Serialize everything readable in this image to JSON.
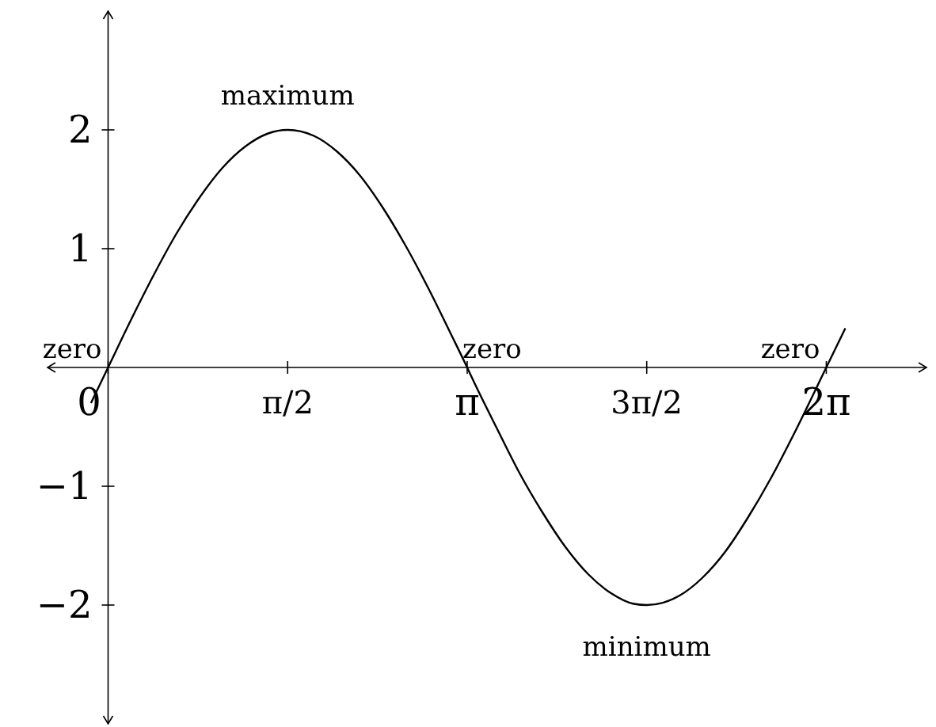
{
  "chart_data": {
    "type": "line",
    "xlim": [
      -0.53,
      7.16
    ],
    "ylim": [
      -3,
      3
    ],
    "xticks": [
      {
        "value": 0,
        "label": "0"
      },
      {
        "value": 1.5708,
        "label": "π/2"
      },
      {
        "value": 3.1416,
        "label": "π"
      },
      {
        "value": 4.7124,
        "label": "3π/2"
      },
      {
        "value": 6.2832,
        "label": "2π"
      }
    ],
    "yticks": [
      {
        "value": -2,
        "label": "−2"
      },
      {
        "value": -1,
        "label": "−1"
      },
      {
        "value": 1,
        "label": "1"
      },
      {
        "value": 2,
        "label": "2"
      }
    ],
    "series": [
      {
        "color": "#000000",
        "x": [
          -0.15,
          0,
          0.2,
          0.4,
          0.6,
          0.8,
          1.0,
          1.2,
          1.4,
          1.5708,
          1.8,
          2.0,
          2.2,
          2.4,
          2.6,
          2.8,
          3.0,
          3.1416,
          3.2,
          3.4,
          3.6,
          3.8,
          4.0,
          4.2,
          4.4,
          4.6,
          4.7124,
          5.0,
          5.2,
          5.4,
          5.6,
          5.8,
          6.0,
          6.2832,
          6.45
        ],
        "values": [
          -0.3,
          0,
          0.4,
          0.78,
          1.13,
          1.43,
          1.68,
          1.86,
          1.97,
          2,
          1.95,
          1.82,
          1.62,
          1.35,
          1.03,
          0.67,
          0.28,
          0,
          -0.12,
          -0.51,
          -0.89,
          -1.22,
          -1.51,
          -1.74,
          -1.9,
          -1.99,
          -2,
          -1.92,
          -1.77,
          -1.55,
          -1.26,
          -0.93,
          -0.56,
          0,
          0.33
        ]
      }
    ],
    "annotations": [
      {
        "text": "maximum",
        "x": 1.5708,
        "y": 2
      },
      {
        "text": "minimum",
        "x": 4.7124,
        "y": -2
      },
      {
        "text": "zero",
        "x": 0,
        "y": 0
      },
      {
        "text": "zero",
        "x": 3.1416,
        "y": 0
      },
      {
        "text": "zero",
        "x": 6.2832,
        "y": 0
      }
    ],
    "grid": false,
    "marker": "none",
    "line_style": "solid"
  }
}
